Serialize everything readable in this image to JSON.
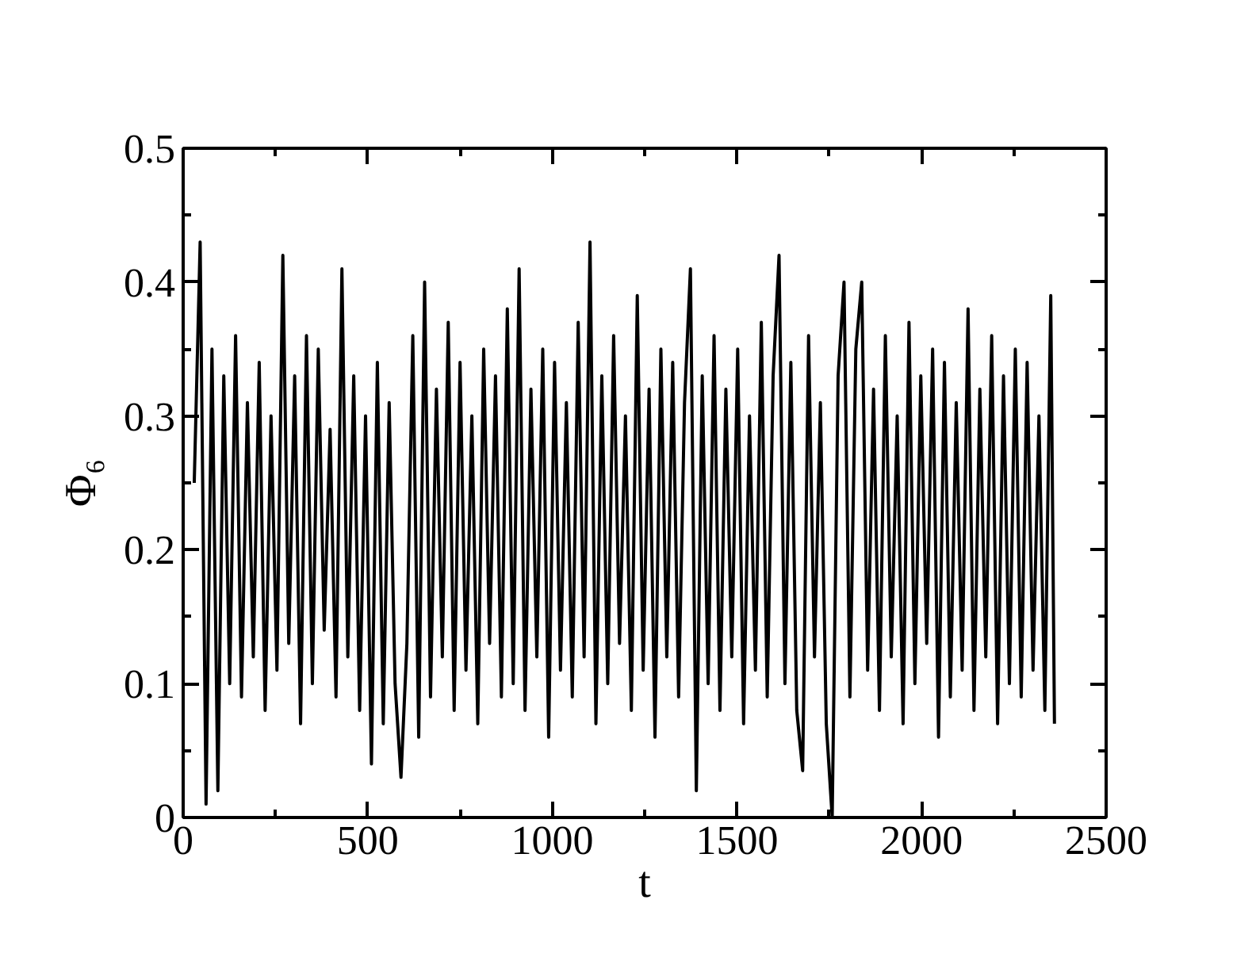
{
  "chart_data": {
    "type": "line",
    "xlabel": "t",
    "ylabel": "Φ₆",
    "x": [
      30,
      46,
      62,
      78,
      94,
      110,
      126,
      142,
      158,
      174,
      190,
      206,
      222,
      238,
      254,
      270,
      286,
      302,
      318,
      334,
      350,
      366,
      382,
      398,
      414,
      430,
      446,
      462,
      478,
      494,
      510,
      526,
      542,
      558,
      574,
      590,
      606,
      622,
      638,
      654,
      670,
      686,
      702,
      718,
      734,
      750,
      766,
      782,
      798,
      814,
      830,
      846,
      862,
      878,
      894,
      910,
      926,
      942,
      958,
      974,
      990,
      1006,
      1022,
      1038,
      1054,
      1070,
      1086,
      1102,
      1118,
      1134,
      1150,
      1166,
      1182,
      1198,
      1214,
      1230,
      1246,
      1262,
      1278,
      1294,
      1310,
      1326,
      1342,
      1358,
      1374,
      1390,
      1406,
      1422,
      1438,
      1454,
      1470,
      1486,
      1502,
      1518,
      1534,
      1550,
      1566,
      1582,
      1598,
      1614,
      1630,
      1646,
      1662,
      1678,
      1694,
      1710,
      1726,
      1742,
      1758,
      1774,
      1790,
      1806,
      1822,
      1838,
      1854,
      1870,
      1886,
      1902,
      1918,
      1934,
      1950,
      1966,
      1982,
      1998,
      2014,
      2030,
      2046,
      2062,
      2078,
      2094,
      2110,
      2126,
      2142,
      2158,
      2174,
      2190,
      2206,
      2222,
      2238,
      2254,
      2270,
      2286,
      2302,
      2318,
      2334,
      2350,
      2360
    ],
    "series": [
      {
        "color": "#000000",
        "values": [
          0.25,
          0.43,
          0.01,
          0.35,
          0.02,
          0.33,
          0.1,
          0.36,
          0.09,
          0.31,
          0.12,
          0.34,
          0.08,
          0.3,
          0.11,
          0.42,
          0.13,
          0.33,
          0.07,
          0.36,
          0.1,
          0.35,
          0.14,
          0.29,
          0.09,
          0.41,
          0.12,
          0.33,
          0.08,
          0.3,
          0.04,
          0.34,
          0.07,
          0.31,
          0.1,
          0.03,
          0.13,
          0.36,
          0.06,
          0.4,
          0.09,
          0.32,
          0.12,
          0.37,
          0.08,
          0.34,
          0.11,
          0.3,
          0.07,
          0.35,
          0.13,
          0.33,
          0.09,
          0.38,
          0.1,
          0.41,
          0.08,
          0.32,
          0.12,
          0.35,
          0.06,
          0.34,
          0.11,
          0.31,
          0.09,
          0.37,
          0.12,
          0.43,
          0.07,
          0.33,
          0.1,
          0.36,
          0.13,
          0.3,
          0.08,
          0.39,
          0.11,
          0.32,
          0.06,
          0.35,
          0.12,
          0.34,
          0.09,
          0.31,
          0.41,
          0.02,
          0.33,
          0.1,
          0.36,
          0.08,
          0.32,
          0.12,
          0.35,
          0.07,
          0.3,
          0.11,
          0.37,
          0.09,
          0.33,
          0.42,
          0.1,
          0.34,
          0.08,
          0.035,
          0.36,
          0.12,
          0.31,
          0.07,
          0.0,
          0.33,
          0.4,
          0.09,
          0.35,
          0.4,
          0.11,
          0.32,
          0.08,
          0.36,
          0.12,
          0.3,
          0.07,
          0.37,
          0.1,
          0.33,
          0.13,
          0.35,
          0.06,
          0.34,
          0.09,
          0.31,
          0.11,
          0.38,
          0.08,
          0.32,
          0.12,
          0.36,
          0.07,
          0.33,
          0.1,
          0.35,
          0.09,
          0.34,
          0.11,
          0.3,
          0.08,
          0.39,
          0.07
        ]
      }
    ],
    "xlim": [
      0,
      2500
    ],
    "xticks": [
      0,
      500,
      1000,
      1500,
      2000,
      2500
    ],
    "ylim": [
      0,
      0.5
    ],
    "yticks": [
      0,
      0.1,
      0.2,
      0.3,
      0.4,
      0.5
    ],
    "grid": false,
    "marker": "none",
    "line_style": "solid"
  }
}
